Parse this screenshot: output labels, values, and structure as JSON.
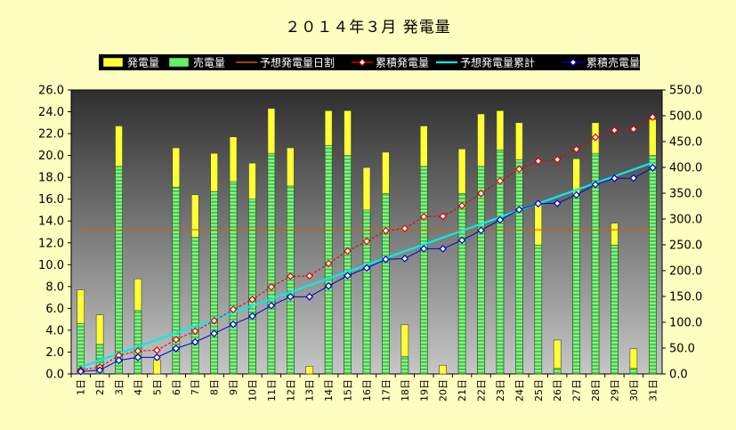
{
  "chart_data": {
    "type": "bar",
    "title": "２０１４年３月 発電量",
    "categories": [
      "1日",
      "2日",
      "3日",
      "4日",
      "5日",
      "6日",
      "7日",
      "8日",
      "9日",
      "10日",
      "11日",
      "12日",
      "13日",
      "14日",
      "15日",
      "16日",
      "17日",
      "18日",
      "19日",
      "20日",
      "21日",
      "22日",
      "23日",
      "24日",
      "25日",
      "26日",
      "27日",
      "28日",
      "29日",
      "30日",
      "31日"
    ],
    "y_left": {
      "min": 0,
      "max": 26,
      "step": 2,
      "ticks": [
        "0.0",
        "2.0",
        "4.0",
        "6.0",
        "8.0",
        "10.0",
        "12.0",
        "14.0",
        "16.0",
        "18.0",
        "20.0",
        "22.0",
        "24.0",
        "26.0"
      ]
    },
    "y_right": {
      "min": 0,
      "max": 550,
      "step": 50,
      "ticks": [
        "0.0",
        "50.0",
        "100.0",
        "150.0",
        "200.0",
        "250.0",
        "300.0",
        "350.0",
        "400.0",
        "450.0",
        "500.0",
        "550.0"
      ]
    },
    "legend_position": "top",
    "grid": false,
    "series": [
      {
        "name": "発電量",
        "kind": "bar",
        "axis": "left",
        "color": "#ffff33",
        "values": [
          7.7,
          5.4,
          22.7,
          8.7,
          1.3,
          20.7,
          16.4,
          20.2,
          21.7,
          19.3,
          24.3,
          20.7,
          0.7,
          24.1,
          24.1,
          18.9,
          20.3,
          4.5,
          22.7,
          0.8,
          20.6,
          23.8,
          24.1,
          23.0,
          15.5,
          3.1,
          19.7,
          23.0,
          13.8,
          2.3,
          23.3
        ]
      },
      {
        "name": "売電量",
        "kind": "bar",
        "axis": "left",
        "color": "#66ee66",
        "values": [
          4.6,
          2.7,
          19.0,
          5.8,
          0.0,
          17.1,
          12.5,
          16.7,
          17.6,
          16.0,
          20.2,
          17.2,
          0.0,
          20.9,
          20.0,
          15.0,
          16.5,
          1.6,
          19.0,
          0.0,
          16.5,
          19.0,
          20.5,
          19.6,
          11.8,
          0.5,
          16.4,
          20.2,
          11.8,
          0.5,
          20.0
        ]
      },
      {
        "name": "予想発電量日割",
        "kind": "line",
        "axis": "left",
        "color": "#cc6600",
        "values": [
          13.2,
          13.2,
          13.2,
          13.2,
          13.2,
          13.2,
          13.2,
          13.2,
          13.2,
          13.2,
          13.2,
          13.2,
          13.2,
          13.2,
          13.2,
          13.2,
          13.2,
          13.2,
          13.2,
          13.2,
          13.2,
          13.2,
          13.2,
          13.2,
          13.2,
          13.2,
          13.2,
          13.2,
          13.2,
          13.2,
          13.2
        ]
      },
      {
        "name": "累積発電量",
        "kind": "line",
        "axis": "right",
        "color": "#dd0000",
        "values": [
          7.7,
          13.1,
          35.8,
          44.5,
          45.8,
          66.5,
          82.9,
          103.1,
          124.8,
          144.1,
          168.4,
          189.1,
          189.8,
          213.9,
          238.0,
          256.9,
          277.2,
          281.7,
          304.4,
          305.2,
          325.8,
          349.6,
          373.7,
          396.7,
          412.2,
          415.3,
          435.0,
          458.0,
          471.8,
          474.1,
          497.4
        ]
      },
      {
        "name": "予想発電量累計",
        "kind": "line",
        "axis": "right",
        "color": "#00eeee",
        "values": [
          13.2,
          26.4,
          39.6,
          52.8,
          66.0,
          79.2,
          92.4,
          105.6,
          118.8,
          132.0,
          145.2,
          158.4,
          171.6,
          184.8,
          198.0,
          211.2,
          224.4,
          237.6,
          250.8,
          264.0,
          277.2,
          290.4,
          303.6,
          316.8,
          330.0,
          343.2,
          356.4,
          369.6,
          382.8,
          396.0,
          409.2
        ]
      },
      {
        "name": "累積売電量",
        "kind": "line",
        "axis": "right",
        "color": "#0000cc",
        "values": [
          4.6,
          7.3,
          26.3,
          32.1,
          32.1,
          49.2,
          61.7,
          78.4,
          96.0,
          112.0,
          132.2,
          149.4,
          149.4,
          170.3,
          190.3,
          205.3,
          221.8,
          223.4,
          242.4,
          242.4,
          258.9,
          277.9,
          298.4,
          318.0,
          329.8,
          330.3,
          346.7,
          366.9,
          378.7,
          379.2,
          399.2
        ]
      }
    ]
  }
}
